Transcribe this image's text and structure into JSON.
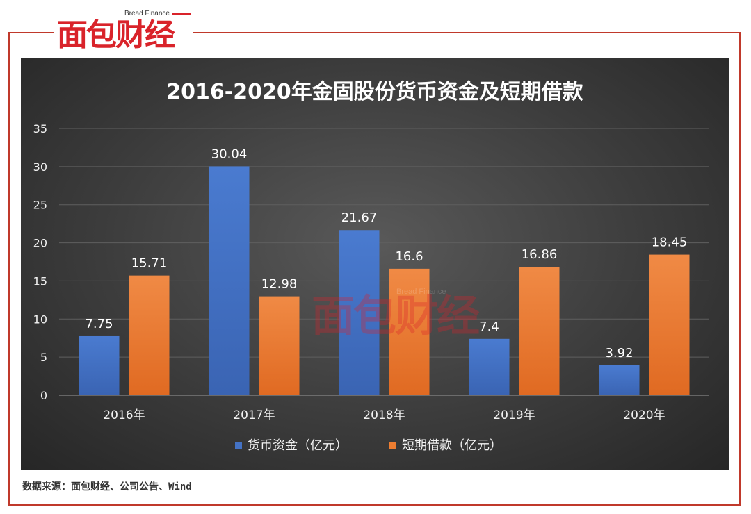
{
  "logo": {
    "english": "Bread Finance",
    "chinese": "面包财经"
  },
  "watermark": {
    "english": "Bread Finance",
    "chinese": "面包财经"
  },
  "source_text": "数据来源：面包财经、公司公告、Wind",
  "colors": {
    "frame": "#c0392b",
    "brand_red": "#d9232a",
    "series_blue": "#4472c4",
    "series_orange": "#ed7d31"
  },
  "chart_data": {
    "type": "bar",
    "title": "2016-2020年金固股份货币资金及短期借款",
    "categories": [
      "2016年",
      "2017年",
      "2018年",
      "2019年",
      "2020年"
    ],
    "series": [
      {
        "name": "货币资金（亿元）",
        "values": [
          7.75,
          30.04,
          21.67,
          7.4,
          3.92
        ],
        "labels": [
          "7.75",
          "30.04",
          "21.67",
          "7.4",
          "3.92"
        ]
      },
      {
        "name": "短期借款（亿元）",
        "values": [
          15.71,
          12.98,
          16.6,
          16.86,
          18.45
        ],
        "labels": [
          "15.71",
          "12.98",
          "16.6",
          "16.86",
          "18.45"
        ]
      }
    ],
    "ylim": [
      0,
      35
    ],
    "yticks": [
      "0",
      "5",
      "10",
      "15",
      "20",
      "25",
      "30",
      "35"
    ],
    "grid": true,
    "legend_position": "bottom"
  }
}
